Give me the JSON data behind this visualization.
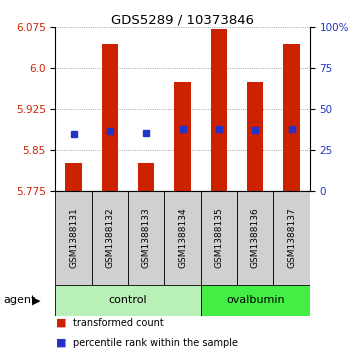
{
  "title": "GDS5289 / 10373846",
  "samples": [
    "GSM1388131",
    "GSM1388132",
    "GSM1388133",
    "GSM1388134",
    "GSM1388135",
    "GSM1388136",
    "GSM1388137"
  ],
  "bar_tops": [
    5.826,
    6.045,
    5.826,
    5.975,
    6.072,
    5.975,
    6.045
  ],
  "bar_bottom": 5.775,
  "blue_y": [
    5.878,
    5.884,
    5.88,
    5.888,
    5.888,
    5.886,
    5.888
  ],
  "ylim_left": [
    5.775,
    6.075
  ],
  "ylim_right": [
    0,
    100
  ],
  "yticks_left": [
    5.775,
    5.85,
    5.925,
    6.0,
    6.075
  ],
  "yticks_right": [
    0,
    25,
    50,
    75,
    100
  ],
  "bar_color": "#cc2200",
  "blue_color": "#2233cc",
  "grid_color": "#888888",
  "label_color_left": "#cc2200",
  "label_color_right": "#2233cc",
  "sample_box_color": "#d0d0d0",
  "control_color": "#b8f0b8",
  "ovalbumin_color": "#44ee44",
  "legend_items": [
    {
      "label": "transformed count",
      "color": "#cc2200"
    },
    {
      "label": "percentile rank within the sample",
      "color": "#2233cc"
    }
  ],
  "agent_label": "agent"
}
